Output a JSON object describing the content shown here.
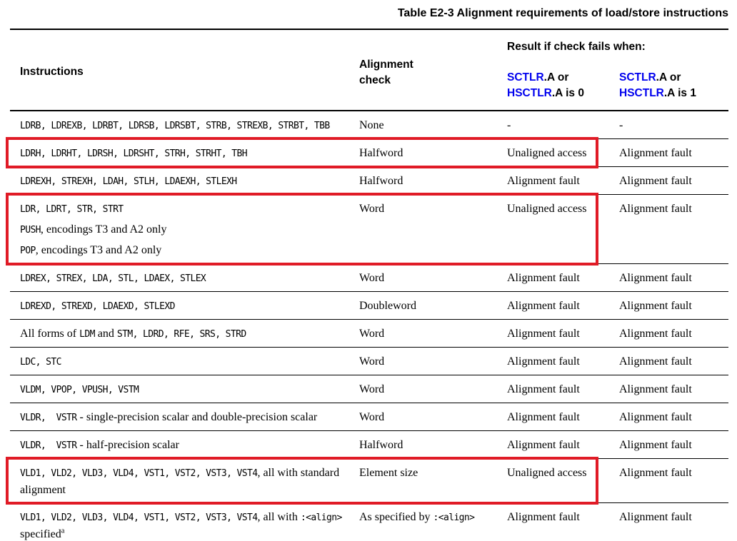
{
  "title": "Table E2-3 Alignment requirements of load/store instructions",
  "colors": {
    "register_blue": "#0000ee",
    "highlight_red": "#e01b26"
  },
  "header": {
    "instructions": "Instructions",
    "alignment_check": "Alignment\ncheck",
    "result_group": "Result if check fails when:",
    "fail0": [
      [
        {
          "s": "reg",
          "t": "SCTLR"
        },
        {
          "s": "plain",
          "t": ".A or"
        }
      ],
      [
        {
          "s": "reg",
          "t": "HSCTLR"
        },
        {
          "s": "plain",
          "t": ".A is 0"
        }
      ]
    ],
    "fail1": [
      [
        {
          "s": "reg",
          "t": "SCTLR"
        },
        {
          "s": "plain",
          "t": ".A or"
        }
      ],
      [
        {
          "s": "reg",
          "t": "HSCTLR"
        },
        {
          "s": "plain",
          "t": ".A is 1"
        }
      ]
    ]
  },
  "rows": [
    {
      "instructions": [
        [
          {
            "s": "code",
            "t": "LDRB, LDREXB, LDRBT, LDRSB, LDRSBT, STRB, STREXB, STRBT, TBB"
          }
        ]
      ],
      "check": [
        [
          {
            "s": "text",
            "t": "None"
          }
        ]
      ],
      "fail0": "-",
      "fail1": "-",
      "highlighted": false
    },
    {
      "instructions": [
        [
          {
            "s": "code",
            "t": "LDRH, LDRHT, LDRSH, LDRSHT, STRH, STRHT, TBH"
          }
        ]
      ],
      "check": [
        [
          {
            "s": "text",
            "t": "Halfword"
          }
        ]
      ],
      "fail0": "Unaligned access",
      "fail1": "Alignment fault",
      "highlighted": true
    },
    {
      "instructions": [
        [
          {
            "s": "code",
            "t": "LDREXH, STREXH, LDAH, STLH, LDAEXH, STLEXH"
          }
        ]
      ],
      "check": [
        [
          {
            "s": "text",
            "t": "Halfword"
          }
        ]
      ],
      "fail0": "Alignment fault",
      "fail1": "Alignment fault",
      "highlighted": false
    },
    {
      "instructions": [
        [
          {
            "s": "code",
            "t": "LDR, LDRT, STR, STRT"
          }
        ],
        [
          {
            "s": "code",
            "t": "PUSH"
          },
          {
            "s": "text",
            "t": ", encodings T3 and A2 only"
          }
        ],
        [
          {
            "s": "code",
            "t": "POP"
          },
          {
            "s": "text",
            "t": ", encodings T3 and A2 only"
          }
        ]
      ],
      "check": [
        [
          {
            "s": "text",
            "t": "Word"
          }
        ]
      ],
      "fail0": "Unaligned access",
      "fail1": "Alignment fault",
      "highlighted": true
    },
    {
      "instructions": [
        [
          {
            "s": "code",
            "t": "LDREX, STREX, LDA, STL, LDAEX, STLEX"
          }
        ]
      ],
      "check": [
        [
          {
            "s": "text",
            "t": "Word"
          }
        ]
      ],
      "fail0": "Alignment fault",
      "fail1": "Alignment fault",
      "highlighted": false
    },
    {
      "instructions": [
        [
          {
            "s": "code",
            "t": "LDREXD, STREXD, LDAEXD, STLEXD"
          }
        ]
      ],
      "check": [
        [
          {
            "s": "text",
            "t": "Doubleword"
          }
        ]
      ],
      "fail0": "Alignment fault",
      "fail1": "Alignment fault",
      "highlighted": false
    },
    {
      "instructions": [
        [
          {
            "s": "text",
            "t": "All forms of "
          },
          {
            "s": "code",
            "t": "LDM"
          },
          {
            "s": "text",
            "t": " and "
          },
          {
            "s": "code",
            "t": "STM, LDRD, RFE, SRS, STRD"
          }
        ]
      ],
      "check": [
        [
          {
            "s": "text",
            "t": "Word"
          }
        ]
      ],
      "fail0": "Alignment fault",
      "fail1": "Alignment fault",
      "highlighted": false
    },
    {
      "instructions": [
        [
          {
            "s": "code",
            "t": "LDC, STC"
          }
        ]
      ],
      "check": [
        [
          {
            "s": "text",
            "t": "Word"
          }
        ]
      ],
      "fail0": "Alignment fault",
      "fail1": "Alignment fault",
      "highlighted": false
    },
    {
      "instructions": [
        [
          {
            "s": "code",
            "t": "VLDM, VPOP, VPUSH, VSTM"
          }
        ]
      ],
      "check": [
        [
          {
            "s": "text",
            "t": "Word"
          }
        ]
      ],
      "fail0": "Alignment fault",
      "fail1": "Alignment fault",
      "highlighted": false
    },
    {
      "instructions": [
        [
          {
            "s": "code",
            "t": "VLDR,  VSTR"
          },
          {
            "s": "text",
            "t": " - single-precision scalar and double-precision scalar"
          }
        ]
      ],
      "check": [
        [
          {
            "s": "text",
            "t": "Word"
          }
        ]
      ],
      "fail0": "Alignment fault",
      "fail1": "Alignment fault",
      "highlighted": false
    },
    {
      "instructions": [
        [
          {
            "s": "code",
            "t": "VLDR,  VSTR"
          },
          {
            "s": "text",
            "t": " - half-precision scalar"
          }
        ]
      ],
      "check": [
        [
          {
            "s": "text",
            "t": "Halfword"
          }
        ]
      ],
      "fail0": "Alignment fault",
      "fail1": "Alignment fault",
      "highlighted": false
    },
    {
      "instructions": [
        [
          {
            "s": "code",
            "t": "VLD1, VLD2, VLD3, VLD4, VST1, VST2, VST3, VST4"
          },
          {
            "s": "text",
            "t": ", all with standard alignment"
          }
        ]
      ],
      "check": [
        [
          {
            "s": "text",
            "t": "Element size"
          }
        ]
      ],
      "fail0": "Unaligned access",
      "fail1": "Alignment fault",
      "highlighted": true
    },
    {
      "instructions": [
        [
          {
            "s": "code",
            "t": "VLD1, VLD2, VLD3, VLD4, VST1, VST2, VST3, VST4"
          },
          {
            "s": "text",
            "t": ", all with "
          },
          {
            "s": "code",
            "t": ":<align>"
          },
          {
            "s": "text",
            "t": " specified"
          },
          {
            "s": "sup",
            "t": "a"
          }
        ]
      ],
      "check": [
        [
          {
            "s": "text",
            "t": "As specified by "
          },
          {
            "s": "code",
            "t": ":<align>"
          }
        ]
      ],
      "fail0": "Alignment fault",
      "fail1": "Alignment fault",
      "highlighted": false
    }
  ]
}
